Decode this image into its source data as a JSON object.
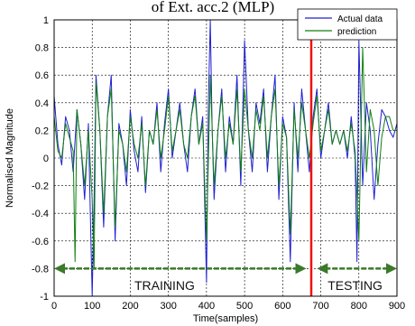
{
  "chart_data": {
    "type": "line",
    "title": "of Ext. acc.2 (MLP)",
    "xlabel": "Time(samples)",
    "ylabel": "Normalised Magnitude",
    "xlim": [
      0,
      900
    ],
    "ylim": [
      -1,
      1
    ],
    "xticks": [
      0,
      100,
      200,
      300,
      400,
      500,
      600,
      700,
      800,
      900
    ],
    "yticks": [
      -1,
      -0.8,
      -0.6,
      -0.4,
      -0.2,
      0,
      0.2,
      0.4,
      0.6,
      0.8,
      1
    ],
    "xtick_labels": [
      "0",
      "100",
      "200",
      "300",
      "400",
      "500",
      "600",
      "700",
      "800",
      "900"
    ],
    "ytick_labels": [
      "-1",
      "-0.8",
      "-0.6",
      "-0.4",
      "-0.2",
      "0",
      "0.2",
      "0.4",
      "0.6",
      "0.8",
      "1"
    ],
    "grid": true,
    "legend_position": "top-right",
    "split_x": 675,
    "colors": {
      "actual": "#2020d0",
      "prediction": "#108010",
      "split": "#ee1111",
      "arrow": "#3a7a2a"
    },
    "series": [
      {
        "name": "Actual data",
        "x": [
          0,
          10,
          20,
          30,
          40,
          50,
          60,
          70,
          80,
          90,
          95,
          100,
          105,
          110,
          120,
          130,
          140,
          150,
          160,
          170,
          180,
          190,
          200,
          210,
          220,
          230,
          240,
          250,
          260,
          270,
          280,
          290,
          300,
          310,
          320,
          330,
          340,
          350,
          360,
          370,
          380,
          390,
          400,
          405,
          410,
          415,
          420,
          430,
          440,
          450,
          460,
          470,
          480,
          490,
          500,
          510,
          520,
          530,
          540,
          550,
          560,
          570,
          580,
          590,
          600,
          610,
          620,
          630,
          640,
          650,
          660,
          670,
          680,
          690,
          700,
          710,
          720,
          730,
          740,
          750,
          760,
          770,
          780,
          790,
          795,
          800,
          810,
          820,
          830,
          840,
          850,
          860,
          870,
          880,
          890,
          900
        ],
        "y": [
          0.45,
          0.1,
          -0.05,
          0.3,
          0.2,
          -0.1,
          0.35,
          0.1,
          -0.3,
          0.25,
          -0.4,
          -1.0,
          -0.3,
          0.6,
          0.2,
          -0.5,
          0.3,
          0.6,
          -0.6,
          0.25,
          0.1,
          -0.2,
          0.35,
          0.05,
          -0.1,
          0.3,
          -0.25,
          0.2,
          0.1,
          0.4,
          -0.1,
          0.25,
          0.5,
          0.0,
          0.2,
          0.4,
          0.1,
          -0.1,
          0.3,
          0.5,
          0.1,
          0.3,
          -0.9,
          0.4,
          1.0,
          0.2,
          -0.3,
          0.2,
          0.5,
          -0.1,
          0.3,
          0.1,
          0.6,
          -0.2,
          0.85,
          0.2,
          -0.1,
          0.4,
          0.25,
          0.5,
          -0.1,
          0.3,
          0.6,
          -0.3,
          0.3,
          0.15,
          -0.75,
          0.4,
          -0.1,
          0.5,
          0.2,
          -0.1,
          0.3,
          0.5,
          0.0,
          0.2,
          0.4,
          0.1,
          0.2,
          0.1,
          0.2,
          0.0,
          0.3,
          0.0,
          -0.75,
          0.85,
          -0.2,
          0.4,
          0.2,
          -0.3,
          0.1,
          0.35,
          0.3,
          0.2,
          0.15,
          0.25
        ]
      },
      {
        "name": "prediction",
        "x": [
          0,
          10,
          20,
          30,
          40,
          50,
          55,
          60,
          70,
          80,
          90,
          100,
          105,
          110,
          120,
          130,
          140,
          150,
          160,
          170,
          180,
          190,
          200,
          210,
          220,
          230,
          240,
          250,
          260,
          270,
          280,
          290,
          300,
          310,
          320,
          330,
          340,
          350,
          360,
          370,
          380,
          390,
          400,
          410,
          420,
          430,
          440,
          450,
          460,
          470,
          480,
          490,
          500,
          510,
          520,
          530,
          540,
          550,
          560,
          570,
          580,
          590,
          600,
          610,
          620,
          630,
          640,
          650,
          660,
          670,
          680,
          690,
          700,
          710,
          720,
          730,
          740,
          750,
          760,
          770,
          780,
          790,
          800,
          810,
          820,
          830,
          840,
          850,
          860,
          870,
          880,
          890,
          900
        ],
        "y": [
          0.3,
          0.05,
          0.0,
          0.25,
          0.15,
          0.05,
          -0.75,
          0.35,
          0.1,
          -0.2,
          0.2,
          -0.3,
          -0.8,
          0.55,
          0.2,
          -0.4,
          0.3,
          0.5,
          -0.5,
          0.2,
          0.1,
          -0.1,
          0.3,
          0.1,
          0.0,
          0.25,
          -0.2,
          0.2,
          0.1,
          0.35,
          0.0,
          0.2,
          0.45,
          0.05,
          0.2,
          0.35,
          0.1,
          0.0,
          0.3,
          0.45,
          0.1,
          0.25,
          -0.6,
          0.6,
          -0.2,
          0.2,
          0.45,
          0.0,
          0.25,
          0.1,
          0.5,
          -0.1,
          0.5,
          0.2,
          0.0,
          0.35,
          0.2,
          0.45,
          0.0,
          0.3,
          0.5,
          -0.2,
          0.25,
          0.15,
          -0.55,
          0.35,
          0.0,
          0.4,
          0.2,
          0.0,
          0.25,
          0.45,
          0.05,
          0.2,
          0.35,
          0.1,
          0.2,
          0.1,
          0.2,
          0.05,
          0.25,
          0.05,
          -0.6,
          0.8,
          -0.1,
          0.35,
          0.2,
          -0.2,
          0.15,
          0.3,
          0.3,
          0.2,
          0.2
        ]
      }
    ],
    "annotations": [
      {
        "text": "TRAINING",
        "x": 290,
        "y": -0.92
      },
      {
        "text": "TESTING",
        "x": 790,
        "y": -0.92
      }
    ],
    "arrows": [
      {
        "x_start": 0,
        "x_end": 662,
        "y": -0.8
      },
      {
        "x_start": 690,
        "x_end": 900,
        "y": -0.8
      }
    ]
  }
}
